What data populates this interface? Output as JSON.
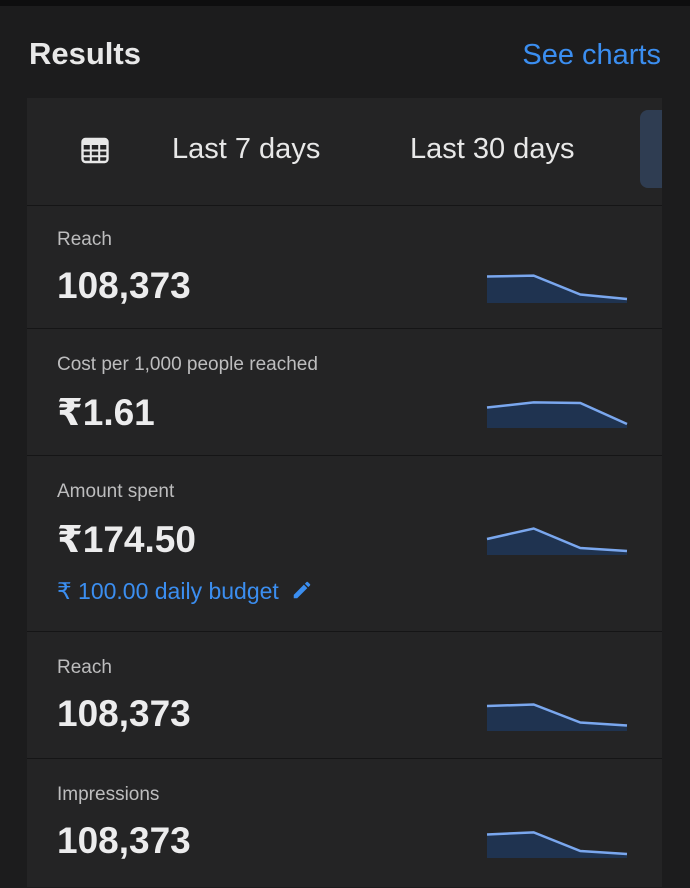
{
  "header": {
    "title": "Results",
    "see_charts_label": "See charts"
  },
  "date_range": {
    "options": [
      {
        "label": "Last 7 days"
      },
      {
        "label": "Last 30 days"
      }
    ]
  },
  "metrics": [
    {
      "label": "Reach",
      "value": "108,373",
      "trend": [
        0.75,
        0.78,
        0.15,
        0.0
      ]
    },
    {
      "label": "Cost per 1,000 people reached",
      "value": "₹1.61",
      "trend": [
        0.55,
        0.72,
        0.7,
        0.0
      ]
    },
    {
      "label": "Amount spent",
      "value": "₹174.50",
      "trend": [
        0.4,
        0.75,
        0.1,
        0.0
      ],
      "budget": "₹ 100.00 daily budget"
    },
    {
      "label": "Reach",
      "value": "108,373",
      "trend": [
        0.7,
        0.75,
        0.15,
        0.05
      ]
    },
    {
      "label": "Impressions",
      "value": "108,373",
      "trend": [
        0.65,
        0.72,
        0.1,
        0.0
      ]
    }
  ],
  "colors": {
    "accent": "#3b8ef0",
    "spark_line": "#7aa7ee",
    "spark_fill": "#1f3350"
  }
}
